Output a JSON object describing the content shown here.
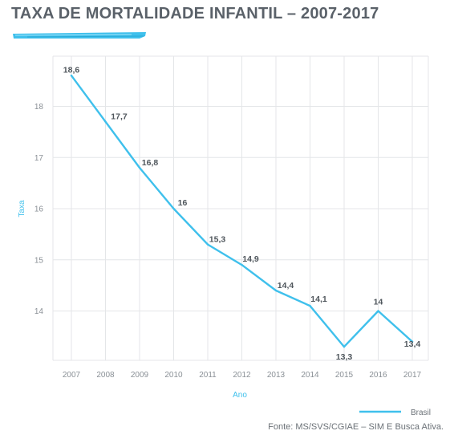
{
  "chart_data": {
    "type": "line",
    "title": "TAXA DE MORTALIDADE INFANTIL – 2007-2017",
    "xlabel": "Ano",
    "ylabel": "Taxa",
    "x": [
      "2007",
      "2008",
      "2009",
      "2010",
      "2011",
      "2012",
      "2013",
      "2014",
      "2015",
      "2016",
      "2017"
    ],
    "y_ticks": [
      "14",
      "15",
      "16",
      "17",
      "18"
    ],
    "ylim": [
      13,
      19
    ],
    "grid": true,
    "legend_position": "bottom-right",
    "series": [
      {
        "name": "Brasil",
        "color": "#3fc0ec",
        "values": [
          18.6,
          17.7,
          16.8,
          16,
          15.3,
          14.9,
          14.4,
          14.1,
          13.3,
          14,
          13.4
        ],
        "labels": [
          "18,6",
          "17,7",
          "16,8",
          "16",
          "15,3",
          "14,9",
          "14,4",
          "14,1",
          "13,3",
          "14",
          "13,4"
        ]
      }
    ]
  },
  "source": "Fonte: MS/SVS/CGIAE – SIM E Busca Ativa.",
  "colors": {
    "accent": "#3fc0ec",
    "title": "#5a6169",
    "grid": "#e4e6e8"
  }
}
